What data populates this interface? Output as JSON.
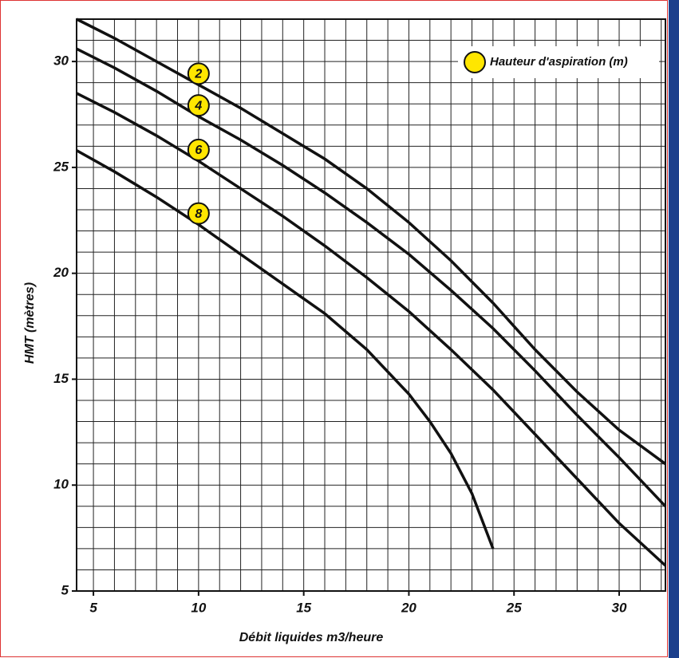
{
  "chart_data": {
    "type": "line",
    "x_label": "Débit liquides m3/heure",
    "y_label": "HMT  (mètres)",
    "legend_title": "Hauteur d'aspiration (m)",
    "legend_color": "#ffe600",
    "xlim": [
      4.2,
      32.2
    ],
    "ylim": [
      5,
      32
    ],
    "xticks": [
      5,
      10,
      15,
      20,
      25,
      30
    ],
    "yticks": [
      5,
      10,
      15,
      20,
      25,
      30
    ],
    "grid": true,
    "minor_grid_step": 1,
    "series": [
      {
        "name": "2",
        "color": "#111111",
        "x": [
          4.2,
          6,
          8,
          10,
          12,
          14,
          16,
          18,
          20,
          22,
          24,
          26,
          28,
          30,
          32.2
        ],
        "values": [
          32.0,
          31.1,
          30.0,
          28.9,
          27.8,
          26.6,
          25.4,
          24.0,
          22.4,
          20.6,
          18.6,
          16.4,
          14.4,
          12.6,
          11.0
        ]
      },
      {
        "name": "4",
        "color": "#111111",
        "x": [
          4.2,
          6,
          8,
          10,
          12,
          14,
          16,
          18,
          20,
          22,
          24,
          26,
          28,
          30,
          32.2
        ],
        "values": [
          30.6,
          29.7,
          28.6,
          27.4,
          26.3,
          25.1,
          23.8,
          22.4,
          20.9,
          19.2,
          17.4,
          15.4,
          13.3,
          11.3,
          9.0
        ]
      },
      {
        "name": "6",
        "color": "#111111",
        "x": [
          4.2,
          6,
          8,
          10,
          12,
          14,
          16,
          18,
          20,
          22,
          24,
          26,
          28,
          30,
          32.2
        ],
        "values": [
          28.5,
          27.6,
          26.5,
          25.3,
          24.0,
          22.7,
          21.3,
          19.8,
          18.2,
          16.4,
          14.5,
          12.4,
          10.3,
          8.2,
          6.2
        ]
      },
      {
        "name": "8",
        "color": "#111111",
        "x": [
          4.2,
          6,
          8,
          10,
          12,
          14,
          16,
          18,
          20,
          21,
          22,
          23,
          24
        ],
        "values": [
          25.8,
          24.8,
          23.6,
          22.3,
          20.9,
          19.5,
          18.1,
          16.4,
          14.3,
          13.0,
          11.5,
          9.6,
          7.0
        ]
      }
    ]
  }
}
